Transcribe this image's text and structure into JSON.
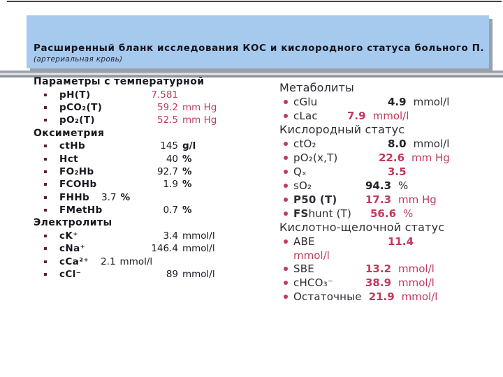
{
  "slide": {
    "title": "Расширенный бланк исследования КОС и кислородного статуса больного П.",
    "subtitle": "(артериальная кровь)"
  },
  "colors": {
    "header_bg": "#a6c9ee",
    "abnormal_value": "#bf3a5e",
    "normal_text": "#17171f"
  },
  "left": {
    "sections": [
      {
        "title": "Параметры с температурной",
        "rows": [
          {
            "label": "pH(T)",
            "num": "7.581",
            "unit": "",
            "flag": "abnormal"
          },
          {
            "label": "pCO₂(T)",
            "num": "59.2",
            "unit": "mm Hg",
            "flag": "abnormal"
          },
          {
            "label": "pO₂(T)",
            "num": "52.5",
            "unit": "mm Hg",
            "flag": "abnormal"
          }
        ]
      },
      {
        "title": "Оксиметрия",
        "rows": [
          {
            "label": "ctHb",
            "num": "145",
            "unit": "g/l",
            "flag": "normal"
          },
          {
            "label": "Hct",
            "num": "40",
            "unit": "%",
            "flag": "normal"
          },
          {
            "label": "FO₂Hb",
            "num": "92.7",
            "unit": "%",
            "flag": "normal"
          },
          {
            "label": "FCOHb",
            "num": "1.9",
            "unit": "%",
            "flag": "normal"
          },
          {
            "label": "FHHb",
            "num": "3.7",
            "unit": "%",
            "flag": "normal"
          },
          {
            "label": "FMetHb",
            "num": "0.7",
            "unit": "%",
            "flag": "normal"
          }
        ]
      },
      {
        "title": "Электролиты",
        "rows": [
          {
            "label": "cK⁺",
            "num": "3.4",
            "unit": "mmol/l",
            "flag": "normal"
          },
          {
            "label": "cNa⁺",
            "num": "146.4",
            "unit": "mmol/l",
            "flag": "normal"
          },
          {
            "label": "cCa²⁺",
            "num": "2.1",
            "unit": "mmol/l",
            "flag": "normal"
          },
          {
            "label": "cCl⁻",
            "num": "89",
            "unit": "mmol/l",
            "flag": "normal"
          }
        ]
      }
    ]
  },
  "right": {
    "sections": [
      {
        "title": "Метаболиты",
        "rows": [
          {
            "label": "cGlu",
            "num": "4.9",
            "unit": "mmol/l",
            "flag": "normal"
          },
          {
            "label": "cLac",
            "num": "7.9",
            "unit": "mmol/l",
            "flag": "abnormal"
          }
        ]
      },
      {
        "title": "Кислородный статус",
        "rows": [
          {
            "label": "ctO₂",
            "num": "8.0",
            "unit": "mmol/l",
            "flag": "normal"
          },
          {
            "label": "pO₂(x,T)",
            "num": "22.6",
            "unit": "mm Hg",
            "flag": "abnormal"
          },
          {
            "label": "Qₓ",
            "num": "3.5",
            "unit": "",
            "flag": "abnormal"
          },
          {
            "label": "sO₂",
            "num": "94.3",
            "unit": "%",
            "flag": "normal"
          },
          {
            "label": "P50 (T)",
            "num": "17.3",
            "unit": "mm Hg",
            "flag": "abnormal"
          },
          {
            "label_bold": "FS",
            "label": "hunt (T)",
            "num": "56.6",
            "unit": "%",
            "flag": "abnormal"
          }
        ]
      },
      {
        "title": "Кислотно-щелочной статус",
        "rows": [
          {
            "label": "ABE",
            "num": "11.4",
            "unit": "",
            "wrap_unit": "mmol/l",
            "flag": "abnormal"
          },
          {
            "label": "SBE",
            "num": "13.2",
            "unit": "mmol/l",
            "flag": "abnormal"
          },
          {
            "label": "cHCO₃⁻",
            "num": "38.9",
            "unit": "mmol/l",
            "flag": "abnormal"
          },
          {
            "label": "Остаточные",
            "num": "21.9",
            "unit": "mmol/l",
            "flag": "abnormal"
          }
        ]
      }
    ]
  }
}
